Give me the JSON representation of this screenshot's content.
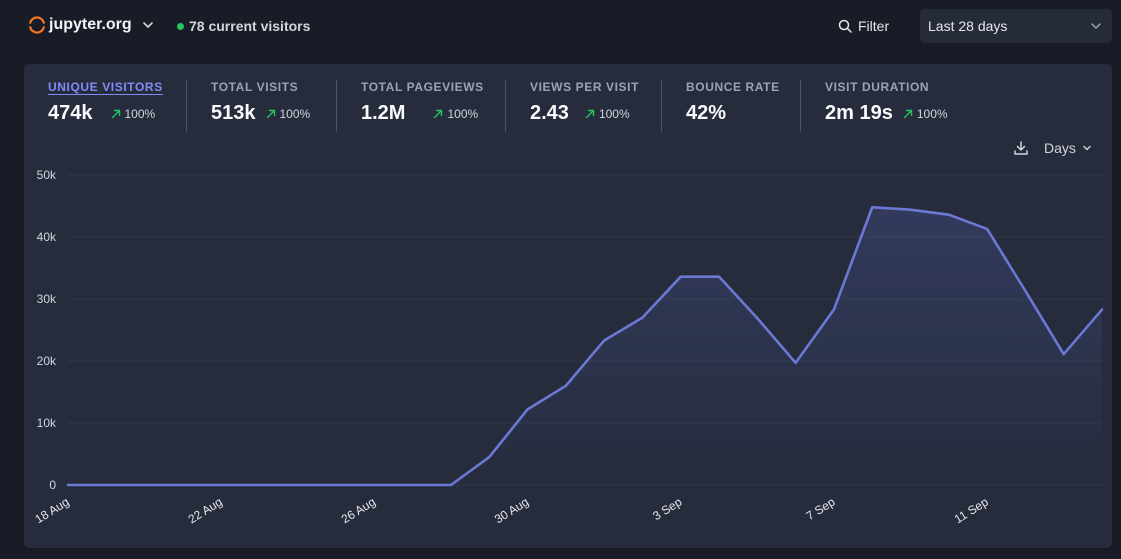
{
  "header": {
    "site_name": "jupyter.org",
    "current_visitors": "78 current visitors",
    "filter_label": "Filter",
    "period_label": "Last 28 days"
  },
  "stats": [
    {
      "label": "UNIQUE VISITORS",
      "value": "474k",
      "change": "100%",
      "active": true
    },
    {
      "label": "TOTAL VISITS",
      "value": "513k",
      "change": "100%"
    },
    {
      "label": "TOTAL PAGEVIEWS",
      "value": "1.2M",
      "change": "100%"
    },
    {
      "label": "VIEWS PER VISIT",
      "value": "2.43",
      "change": "100%"
    },
    {
      "label": "BOUNCE RATE",
      "value": "42%",
      "change": ""
    },
    {
      "label": "VISIT DURATION",
      "value": "2m 19s",
      "change": "100%"
    }
  ],
  "controls": {
    "interval_label": "Days"
  },
  "colors": {
    "line": "#6b78d6",
    "accent": "#818cf8",
    "up_arrow": "#22c55e"
  },
  "chart_data": {
    "type": "area",
    "title": "Unique visitors",
    "x": [
      "18 Aug",
      "19 Aug",
      "20 Aug",
      "21 Aug",
      "22 Aug",
      "23 Aug",
      "24 Aug",
      "25 Aug",
      "26 Aug",
      "27 Aug",
      "28 Aug",
      "29 Aug",
      "30 Aug",
      "31 Aug",
      "1 Sep",
      "2 Sep",
      "3 Sep",
      "4 Sep",
      "5 Sep",
      "6 Sep",
      "7 Sep",
      "8 Sep",
      "9 Sep",
      "10 Sep",
      "11 Sep",
      "12 Sep",
      "13 Sep",
      "14 Sep"
    ],
    "series": [
      {
        "name": "Unique visitors",
        "values": [
          0,
          0,
          0,
          0,
          0,
          0,
          0,
          0,
          0,
          0,
          0,
          4500,
          12200,
          16000,
          23300,
          27000,
          33600,
          33600,
          26900,
          19700,
          28300,
          44800,
          44400,
          43600,
          41300,
          31300,
          21100,
          28300
        ]
      }
    ],
    "x_tick_labels": [
      "18 Aug",
      "22 Aug",
      "26 Aug",
      "30 Aug",
      "3 Sep",
      "7 Sep",
      "11 Sep"
    ],
    "y_tick_labels": [
      "0",
      "10k",
      "20k",
      "30k",
      "40k",
      "50k"
    ],
    "ylim": [
      0,
      50000
    ],
    "grid": true,
    "xlabel": "",
    "ylabel": ""
  }
}
